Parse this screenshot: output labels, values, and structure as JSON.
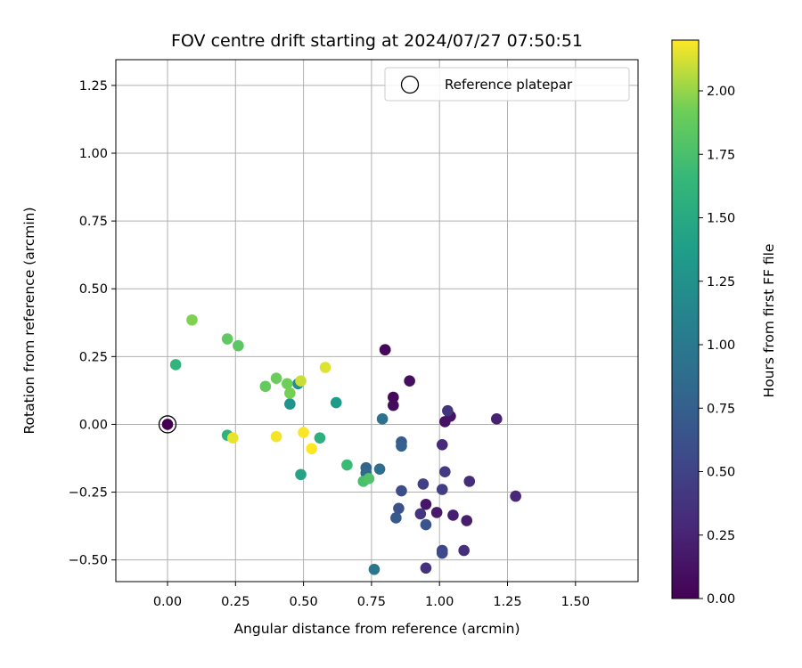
{
  "chart_data": {
    "type": "scatter",
    "title": "FOV centre drift starting at 2024/07/27 07:50:51",
    "xlabel": "Angular distance from reference (arcmin)",
    "ylabel": "Rotation from reference (arcmin)",
    "xlim": [
      -0.19,
      1.73
    ],
    "ylim": [
      -0.58,
      1.345
    ],
    "xticks": [
      "0.00",
      "0.25",
      "0.50",
      "0.75",
      "1.00",
      "1.25",
      "1.50"
    ],
    "yticks": [
      "−0.50",
      "−0.25",
      "0.00",
      "0.25",
      "0.50",
      "0.75",
      "1.00",
      "1.25"
    ],
    "xtick_values": [
      0,
      0.25,
      0.5,
      0.75,
      1.0,
      1.25,
      1.5
    ],
    "ytick_values": [
      -0.5,
      -0.25,
      0,
      0.25,
      0.5,
      0.75,
      1.0,
      1.25
    ],
    "grid": true,
    "legend": {
      "label": "Reference platepar",
      "placement": "top-right"
    },
    "reference_point": {
      "x": 0.0,
      "y": 0.0
    },
    "colorbar": {
      "label": "Hours from first FF file",
      "min": 0.0,
      "max": 2.2,
      "colormap": "viridis",
      "ticks": [
        "0.00",
        "0.25",
        "0.50",
        "0.75",
        "1.00",
        "1.25",
        "1.50",
        "1.75",
        "2.00"
      ],
      "tick_values": [
        0,
        0.25,
        0.5,
        0.75,
        1.0,
        1.25,
        1.5,
        1.75,
        2.0
      ]
    },
    "points": [
      {
        "x": 0.8,
        "y": 0.275,
        "hours": 0.02
      },
      {
        "x": 0.8,
        "y": 0.275,
        "hours": 0.04
      },
      {
        "x": 0.83,
        "y": 0.1,
        "hours": 0.06
      },
      {
        "x": 0.83,
        "y": 0.07,
        "hours": 0.08
      },
      {
        "x": 0.89,
        "y": 0.16,
        "hours": 0.1
      },
      {
        "x": 1.02,
        "y": 0.01,
        "hours": 0.12
      },
      {
        "x": 1.04,
        "y": 0.03,
        "hours": 0.14
      },
      {
        "x": 0.95,
        "y": -0.295,
        "hours": 0.16
      },
      {
        "x": 0.99,
        "y": -0.325,
        "hours": 0.18
      },
      {
        "x": 1.1,
        "y": -0.355,
        "hours": 0.2
      },
      {
        "x": 1.05,
        "y": -0.335,
        "hours": 0.22
      },
      {
        "x": 1.21,
        "y": 0.02,
        "hours": 0.24
      },
      {
        "x": 1.28,
        "y": -0.265,
        "hours": 0.28
      },
      {
        "x": 1.01,
        "y": -0.075,
        "hours": 0.3
      },
      {
        "x": 1.11,
        "y": -0.21,
        "hours": 0.32
      },
      {
        "x": 1.09,
        "y": -0.465,
        "hours": 0.34
      },
      {
        "x": 0.95,
        "y": -0.53,
        "hours": 0.36
      },
      {
        "x": 1.03,
        "y": 0.05,
        "hours": 0.38
      },
      {
        "x": 0.93,
        "y": -0.33,
        "hours": 0.4
      },
      {
        "x": 1.02,
        "y": -0.175,
        "hours": 0.44
      },
      {
        "x": 1.01,
        "y": -0.24,
        "hours": 0.46
      },
      {
        "x": 0.94,
        "y": -0.22,
        "hours": 0.48
      },
      {
        "x": 1.01,
        "y": -0.465,
        "hours": 0.52
      },
      {
        "x": 1.01,
        "y": -0.475,
        "hours": 0.56
      },
      {
        "x": 0.86,
        "y": -0.245,
        "hours": 0.58
      },
      {
        "x": 0.85,
        "y": -0.31,
        "hours": 0.62
      },
      {
        "x": 0.95,
        "y": -0.37,
        "hours": 0.66
      },
      {
        "x": 0.84,
        "y": -0.345,
        "hours": 0.7
      },
      {
        "x": 0.86,
        "y": -0.065,
        "hours": 0.72
      },
      {
        "x": 0.86,
        "y": -0.08,
        "hours": 0.76
      },
      {
        "x": 0.73,
        "y": -0.16,
        "hours": 0.8
      },
      {
        "x": 0.73,
        "y": -0.18,
        "hours": 0.84
      },
      {
        "x": 0.78,
        "y": -0.165,
        "hours": 0.88
      },
      {
        "x": 0.79,
        "y": 0.02,
        "hours": 0.92
      },
      {
        "x": 0.76,
        "y": -0.535,
        "hours": 0.96
      },
      {
        "x": 0.48,
        "y": 0.15,
        "hours": 1.2
      },
      {
        "x": 0.45,
        "y": 0.075,
        "hours": 1.28
      },
      {
        "x": 0.62,
        "y": 0.08,
        "hours": 1.36
      },
      {
        "x": 0.49,
        "y": -0.185,
        "hours": 1.44
      },
      {
        "x": 0.56,
        "y": -0.05,
        "hours": 1.56
      },
      {
        "x": 0.22,
        "y": -0.04,
        "hours": 1.6
      },
      {
        "x": 0.03,
        "y": 0.22,
        "hours": 1.62
      },
      {
        "x": 0.66,
        "y": -0.15,
        "hours": 1.68
      },
      {
        "x": 0.72,
        "y": -0.21,
        "hours": 1.74
      },
      {
        "x": 0.74,
        "y": -0.2,
        "hours": 1.78
      },
      {
        "x": 0.26,
        "y": 0.29,
        "hours": 1.84
      },
      {
        "x": 0.22,
        "y": 0.315,
        "hours": 1.86
      },
      {
        "x": 0.36,
        "y": 0.14,
        "hours": 1.88
      },
      {
        "x": 0.4,
        "y": 0.17,
        "hours": 1.9
      },
      {
        "x": 0.44,
        "y": 0.15,
        "hours": 1.92
      },
      {
        "x": 0.45,
        "y": 0.115,
        "hours": 1.94
      },
      {
        "x": 0.09,
        "y": 0.385,
        "hours": 1.96
      },
      {
        "x": 0.49,
        "y": 0.16,
        "hours": 2.1
      },
      {
        "x": 0.58,
        "y": 0.21,
        "hours": 2.14
      },
      {
        "x": 0.24,
        "y": -0.05,
        "hours": 2.16
      },
      {
        "x": 0.4,
        "y": -0.045,
        "hours": 2.18
      },
      {
        "x": 0.5,
        "y": -0.03,
        "hours": 2.19
      },
      {
        "x": 0.53,
        "y": -0.09,
        "hours": 2.2
      }
    ]
  }
}
